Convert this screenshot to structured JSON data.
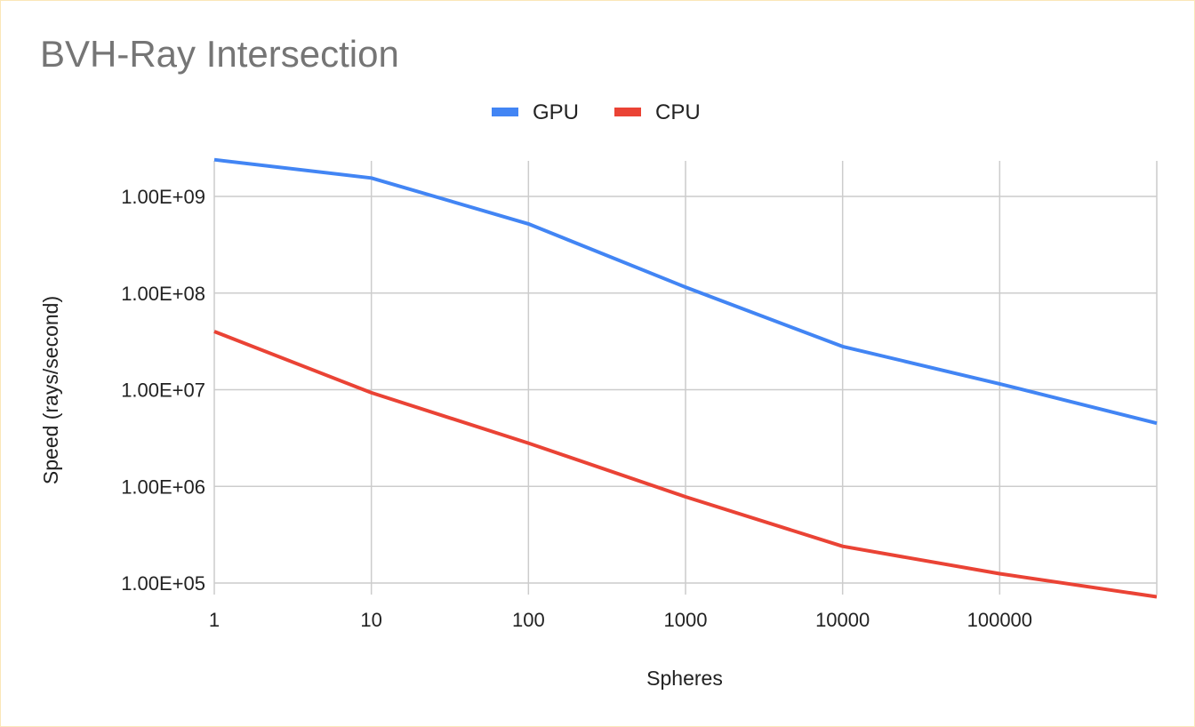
{
  "chart_data": {
    "type": "line",
    "title": "BVH-Ray Intersection",
    "xlabel": "Spheres",
    "ylabel": "Speed (rays/second)",
    "x_scale": "log",
    "y_scale": "log",
    "x": [
      1,
      10,
      100,
      1000,
      10000,
      100000,
      1000000
    ],
    "xlim": [
      1,
      1000000
    ],
    "ylim": [
      100000,
      2500000000
    ],
    "x_tick_labels": [
      "1",
      "10",
      "100",
      "1000",
      "10000",
      "100000"
    ],
    "y_tick_labels": [
      "1.00E+05",
      "1.00E+06",
      "1.00E+07",
      "1.00E+08",
      "1.00E+09"
    ],
    "grid": true,
    "legend_position": "top",
    "series": [
      {
        "name": "GPU",
        "color": "#4285f4",
        "values": [
          2400000000,
          1550000000,
          520000000,
          115000000,
          28000000,
          11500000,
          4500000
        ]
      },
      {
        "name": "CPU",
        "color": "#ea4335",
        "values": [
          40000000,
          9300000,
          2800000,
          780000,
          240000,
          125000,
          72000
        ]
      }
    ]
  }
}
